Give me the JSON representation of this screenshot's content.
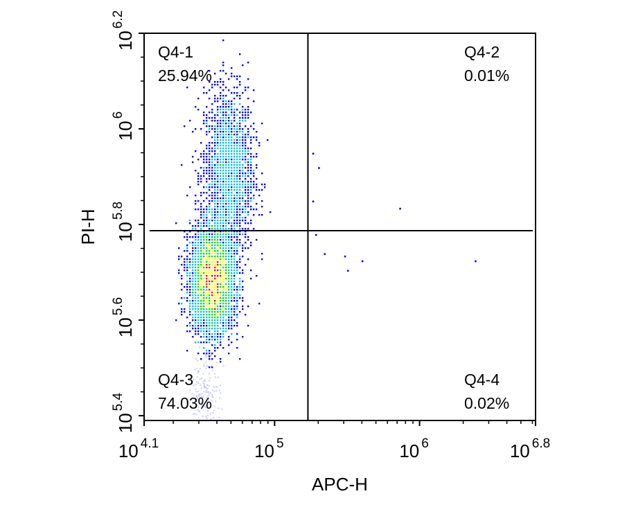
{
  "chart_data": {
    "type": "scatter",
    "subtype": "flow-cytometry density dot plot",
    "xlabel": "APC-H",
    "ylabel": "PI-H",
    "x_scale": "log10",
    "y_scale": "log10",
    "xlim_log10": [
      4.1,
      6.8
    ],
    "ylim_log10": [
      5.39,
      6.2
    ],
    "x_ticks": [
      {
        "base": "10",
        "exp": "4.1",
        "value": 4.1
      },
      {
        "base": "10",
        "exp": "5",
        "value": 5
      },
      {
        "base": "10",
        "exp": "6",
        "value": 6
      },
      {
        "base": "10",
        "exp": "6.8",
        "value": 6.8
      }
    ],
    "y_ticks": [
      {
        "base": "10",
        "exp": "5.4",
        "value": 5.4
      },
      {
        "base": "10",
        "exp": "5.6",
        "value": 5.6
      },
      {
        "base": "10",
        "exp": "5.8",
        "value": 5.8
      },
      {
        "base": "10",
        "exp": "6",
        "value": 6
      },
      {
        "base": "10",
        "exp": "6.2",
        "value": 6.2
      }
    ],
    "gates": {
      "x_log10": 5.23,
      "y_log10": 5.787
    },
    "quadrants": [
      {
        "name": "Q4-1",
        "percent": "25.94%",
        "position": "top-left"
      },
      {
        "name": "Q4-2",
        "percent": "0.01%",
        "position": "top-right"
      },
      {
        "name": "Q4-3",
        "percent": "74.03%",
        "position": "bottom-left"
      },
      {
        "name": "Q4-4",
        "percent": "0.02%",
        "position": "bottom-right"
      }
    ],
    "density_clusters": [
      {
        "label": "upper population",
        "center_x_log10": 4.68,
        "center_y_log10": 5.91,
        "sd_x_log10": 0.085,
        "sd_y_log10": 0.085,
        "weight": 0.26
      },
      {
        "label": "lower population",
        "center_x_log10": 4.57,
        "center_y_log10": 5.685,
        "sd_x_log10": 0.075,
        "sd_y_log10": 0.055,
        "weight": 0.74
      }
    ],
    "outliers_log10": [
      [
        5.26,
        5.95
      ],
      [
        5.3,
        5.92
      ],
      [
        5.86,
        5.835
      ],
      [
        5.34,
        5.74
      ],
      [
        5.48,
        5.735
      ],
      [
        5.6,
        5.725
      ],
      [
        5.5,
        5.705
      ],
      [
        6.38,
        5.725
      ],
      [
        5.26,
        5.85
      ],
      [
        5.28,
        5.78
      ]
    ],
    "colors": {
      "density_low": "#0000ff",
      "density_mid_low": "#00bfff",
      "density_mid": "#00e000",
      "density_mid_high": "#ffff00",
      "density_high": "#ff0000",
      "faint_events": "#c8c8ff",
      "gate_lines": "#000000"
    },
    "grid": false,
    "legend": "none"
  }
}
